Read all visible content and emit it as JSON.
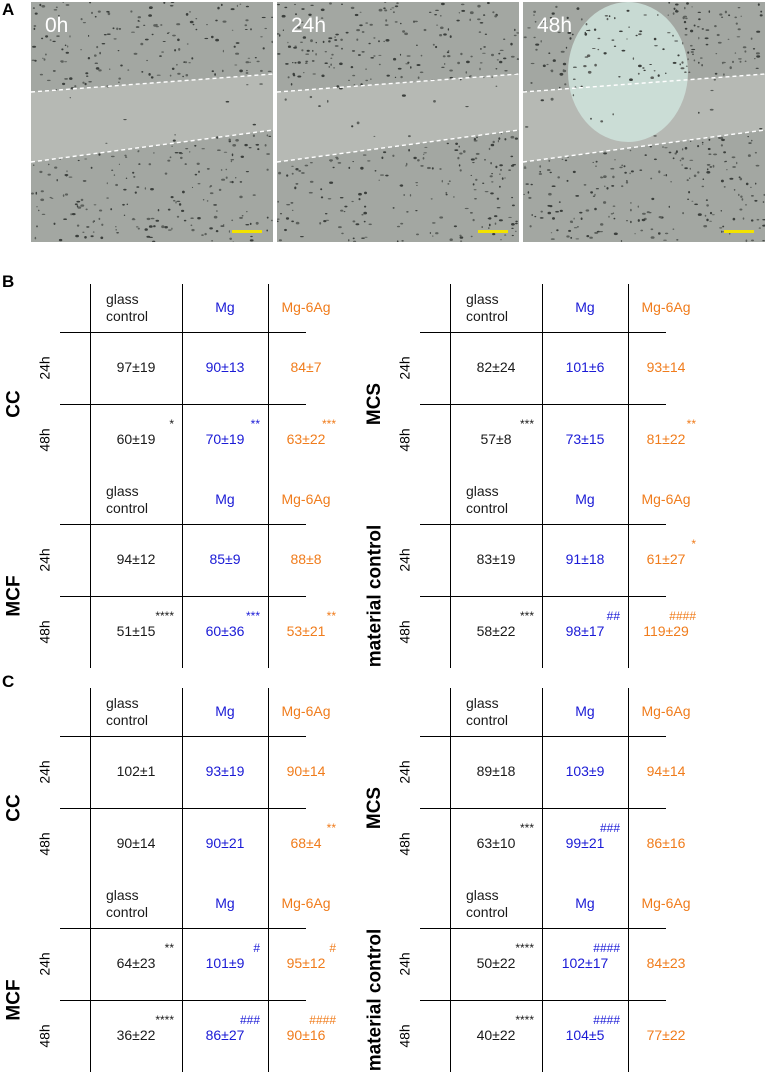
{
  "panels": {
    "a": "A",
    "b": "B",
    "c": "C"
  },
  "micrographs": [
    {
      "label": "0h",
      "bright_spot": false
    },
    {
      "label": "24h",
      "bright_spot": false
    },
    {
      "label": "48h",
      "bright_spot": true
    }
  ],
  "colors": {
    "glass": "#1a1a1a",
    "mg": "#1a1ad6",
    "mg6ag": "#f07c1c",
    "scale_bar": "#f2e200"
  },
  "columns": {
    "glass": "glass\ncontrol",
    "mg": "Mg",
    "mg6ag": "Mg-6Ag"
  },
  "row_labels": {
    "r24": "24h",
    "r48": "48h"
  },
  "panel_b": [
    {
      "group": "CC",
      "r24": {
        "glass": {
          "v": "97±19",
          "s": ""
        },
        "mg": {
          "v": "90±13",
          "s": ""
        },
        "mg6ag": {
          "v": "84±7",
          "s": ""
        }
      },
      "r48": {
        "glass": {
          "v": "60±19",
          "s": "*"
        },
        "mg": {
          "v": "70±19",
          "s": "**"
        },
        "mg6ag": {
          "v": "63±22",
          "s": "***"
        }
      }
    },
    {
      "group": "MCS",
      "r24": {
        "glass": {
          "v": "82±24",
          "s": ""
        },
        "mg": {
          "v": "101±6",
          "s": ""
        },
        "mg6ag": {
          "v": "93±14",
          "s": ""
        }
      },
      "r48": {
        "glass": {
          "v": "57±8",
          "s": "***"
        },
        "mg": {
          "v": "73±15",
          "s": ""
        },
        "mg6ag": {
          "v": "81±22",
          "s": "**"
        }
      }
    },
    {
      "group": "MCF",
      "r24": {
        "glass": {
          "v": "94±12",
          "s": ""
        },
        "mg": {
          "v": "85±9",
          "s": ""
        },
        "mg6ag": {
          "v": "88±8",
          "s": ""
        }
      },
      "r48": {
        "glass": {
          "v": "51±15",
          "s": "****"
        },
        "mg": {
          "v": "60±36",
          "s": "***"
        },
        "mg6ag": {
          "v": "53±21",
          "s": "**"
        }
      }
    },
    {
      "group": "material control",
      "r24": {
        "glass": {
          "v": "83±19",
          "s": ""
        },
        "mg": {
          "v": "91±18",
          "s": ""
        },
        "mg6ag": {
          "v": "61±27",
          "s": "*"
        }
      },
      "r48": {
        "glass": {
          "v": "58±22",
          "s": "***"
        },
        "mg": {
          "v": "98±17",
          "s": "##"
        },
        "mg6ag": {
          "v": "119±29",
          "s": "####"
        }
      }
    }
  ],
  "panel_c": [
    {
      "group": "CC",
      "r24": {
        "glass": {
          "v": "102±1",
          "s": ""
        },
        "mg": {
          "v": "93±19",
          "s": ""
        },
        "mg6ag": {
          "v": "90±14",
          "s": ""
        }
      },
      "r48": {
        "glass": {
          "v": "90±14",
          "s": ""
        },
        "mg": {
          "v": "90±21",
          "s": ""
        },
        "mg6ag": {
          "v": "68±4",
          "s": "**"
        }
      }
    },
    {
      "group": "MCS",
      "r24": {
        "glass": {
          "v": "89±18",
          "s": ""
        },
        "mg": {
          "v": "103±9",
          "s": ""
        },
        "mg6ag": {
          "v": "94±14",
          "s": ""
        }
      },
      "r48": {
        "glass": {
          "v": "63±10",
          "s": "***"
        },
        "mg": {
          "v": "99±21",
          "s": "###"
        },
        "mg6ag": {
          "v": "86±16",
          "s": ""
        }
      }
    },
    {
      "group": "MCF",
      "r24": {
        "glass": {
          "v": "64±23",
          "s": "**"
        },
        "mg": {
          "v": "101±9",
          "s": "#"
        },
        "mg6ag": {
          "v": "95±12",
          "s": "#"
        }
      },
      "r48": {
        "glass": {
          "v": "36±22",
          "s": "****"
        },
        "mg": {
          "v": "86±27",
          "s": "###"
        },
        "mg6ag": {
          "v": "90±16",
          "s": "####"
        }
      }
    },
    {
      "group": "material control",
      "r24": {
        "glass": {
          "v": "50±22",
          "s": "****"
        },
        "mg": {
          "v": "102±17",
          "s": "####"
        },
        "mg6ag": {
          "v": "84±23",
          "s": ""
        }
      },
      "r48": {
        "glass": {
          "v": "40±22",
          "s": "****"
        },
        "mg": {
          "v": "104±5",
          "s": "####"
        },
        "mg6ag": {
          "v": "77±22",
          "s": ""
        }
      }
    }
  ]
}
